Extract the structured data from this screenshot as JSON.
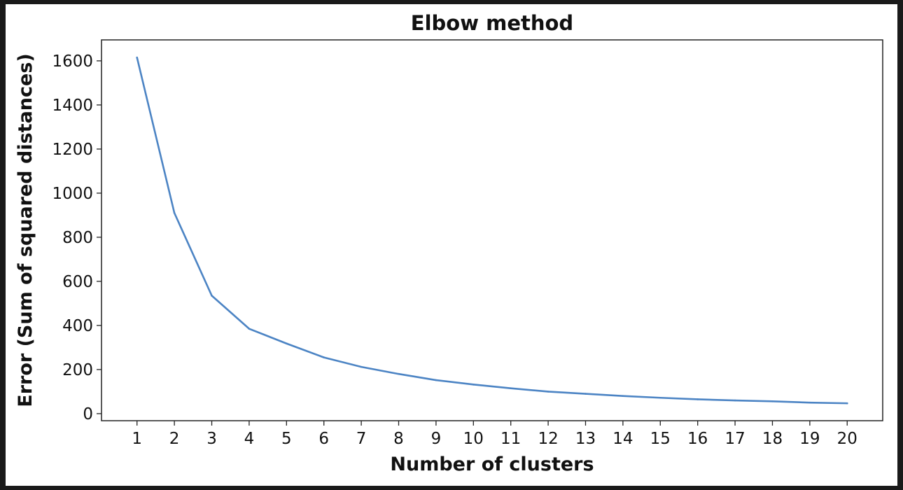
{
  "chart_data": {
    "type": "line",
    "title": "Elbow method",
    "xlabel": "Number of clusters",
    "ylabel": "Error (Sum of squared distances)",
    "x": [
      1,
      2,
      3,
      4,
      5,
      6,
      7,
      8,
      9,
      10,
      11,
      12,
      13,
      14,
      15,
      16,
      17,
      18,
      19,
      20
    ],
    "series": [
      {
        "values": [
          1615,
          910,
          535,
          385,
          318,
          255,
          212,
          180,
          152,
          132,
          115,
          100,
          90,
          80,
          72,
          65,
          60,
          56,
          50,
          47
        ],
        "color": "#4c84c4"
      }
    ],
    "xticks": [
      1,
      2,
      3,
      4,
      5,
      6,
      7,
      8,
      9,
      10,
      11,
      12,
      13,
      14,
      15,
      16,
      17,
      18,
      19,
      20
    ],
    "yticks": [
      0,
      200,
      400,
      600,
      800,
      1000,
      1200,
      1400,
      1600
    ],
    "xlim": [
      0.05,
      20.95
    ],
    "ylim": [
      -32,
      1695
    ],
    "grid": false,
    "legend": "none"
  }
}
